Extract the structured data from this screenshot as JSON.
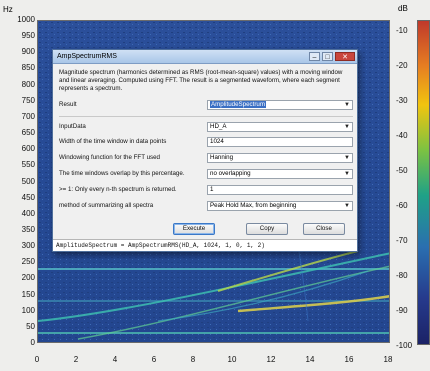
{
  "axes": {
    "y_unit": "Hz",
    "y_ticks": [
      "1000",
      "950",
      "900",
      "850",
      "800",
      "750",
      "700",
      "650",
      "600",
      "550",
      "500",
      "450",
      "400",
      "350",
      "300",
      "250",
      "200",
      "150",
      "100",
      "50",
      "0"
    ],
    "x_ticks": [
      "0",
      "2",
      "4",
      "6",
      "8",
      "10",
      "12",
      "14",
      "16",
      "18"
    ],
    "colorbar_unit": "dB",
    "colorbar_ticks": [
      "-10",
      "-20",
      "-30",
      "-40",
      "-50",
      "-60",
      "-70",
      "-80",
      "-90",
      "-100"
    ]
  },
  "dialog": {
    "title": "AmpSpectrumRMS",
    "description": "Magnitude spectrum (harmonics determined as RMS (root-mean-square) values) with a moving window and linear averaging. Computed using FFT. The result is a segmented waveform, where each segment represents a spectrum.",
    "result": {
      "label": "Result",
      "value": "AmplitudeSpectrum"
    },
    "fields": [
      {
        "label": "InputData",
        "value": "HD_A",
        "combo": true
      },
      {
        "label": "Width of the time window in data points",
        "value": "1024",
        "combo": false
      },
      {
        "label": "Windowing function for the FFT used",
        "value": "Hanning",
        "combo": true
      },
      {
        "label": "The time windows overlap by this percentage.",
        "value": "no overlapping",
        "combo": true
      },
      {
        "label": ">= 1: Only every n-th spectrum is returned.",
        "value": "1",
        "combo": false
      },
      {
        "label": "method of summarizing all spectra",
        "value": "Peak Hold Max, from beginning",
        "combo": true
      }
    ],
    "buttons": {
      "execute": "Execute",
      "copy": "Copy",
      "close": "Close"
    },
    "formula": "AmplitudeSpectrum = AmpSpectrumRMS(HD_A, 1024, 1, 0, 1, 2)"
  }
}
